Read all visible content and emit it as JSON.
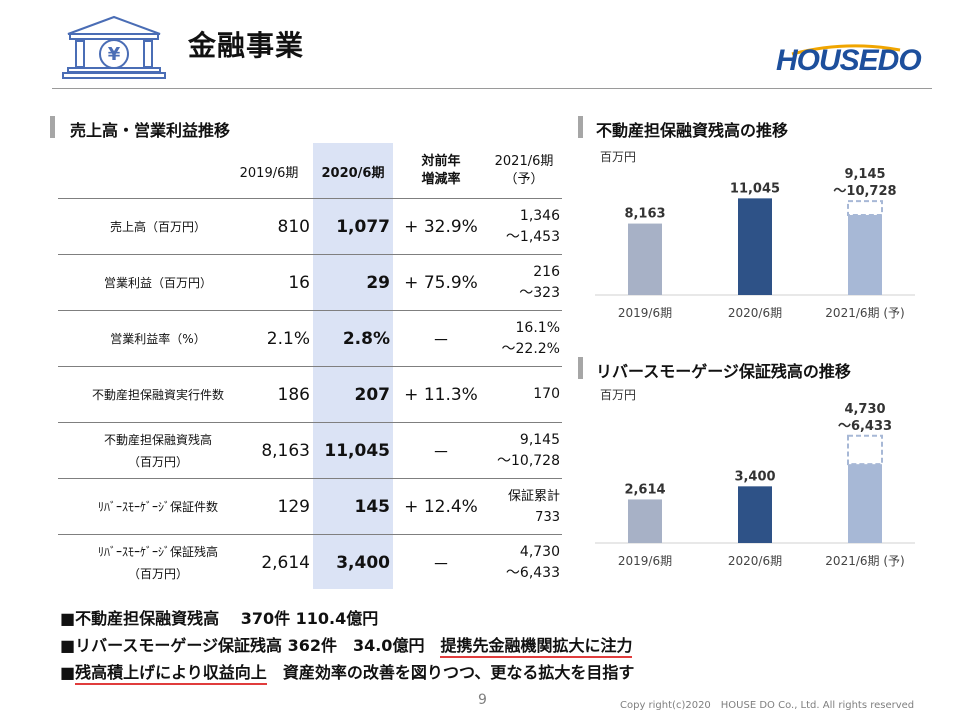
{
  "title": "金融事業",
  "brand": "HOUSEDO",
  "left_section_title": "売上高・営業利益推移",
  "table": {
    "headers": {
      "fy2019": "2019/6期",
      "fy2020": "2020/6期",
      "change": "対前年\n増減率",
      "forecast": "2021/6期\n（予）"
    },
    "rows": [
      {
        "label": "売上高（百万円）",
        "fy2019": "810",
        "fy2020": "1,077",
        "change": "+ 32.9%",
        "forecast": "1,346\n～1,453"
      },
      {
        "label": "営業利益（百万円）",
        "fy2019": "16",
        "fy2020": "29",
        "change": "+ 75.9%",
        "forecast": "216\n～323"
      },
      {
        "label": "営業利益率（%）",
        "fy2019": "2.1%",
        "fy2020": "2.8%",
        "change": "－",
        "forecast": "16.1%\n～22.2%"
      },
      {
        "label": "不動産担保融資実行件数",
        "fy2019": "186",
        "fy2020": "207",
        "change": "+ 11.3%",
        "forecast": "170"
      },
      {
        "label": "不動産担保融資残高\n（百万円）",
        "fy2019": "8,163",
        "fy2020": "11,045",
        "change": "－",
        "forecast": "9,145\n～10,728"
      },
      {
        "label": "ﾘﾊﾞｰｽﾓｰｹﾞｰｼﾞ保証件数",
        "fy2019": "129",
        "fy2020": "145",
        "change": "+ 12.4%",
        "forecast": "保証累計\n733"
      },
      {
        "label": "ﾘﾊﾞｰｽﾓｰｹﾞｰｼﾞ保証残高\n（百万円）",
        "fy2019": "2,614",
        "fy2020": "3,400",
        "change": "－",
        "forecast": "4,730\n～6,433"
      }
    ]
  },
  "chart_data": [
    {
      "type": "bar",
      "title": "不動産担保融資残高の推移",
      "unit": "百万円",
      "categories": [
        "2019/6期",
        "2020/6期",
        "2021/6期 (予)"
      ],
      "values": [
        8163,
        11045,
        9145
      ],
      "value_labels": [
        "8,163",
        "11,045",
        "9,145\n～10,728"
      ],
      "range_upper": 10728,
      "ylim": [
        0,
        12000
      ],
      "colors": [
        "#a7b1c6",
        "#2e5287",
        "#a7b8d6"
      ]
    },
    {
      "type": "bar",
      "title": "リバースモーゲージ保証残高の推移",
      "unit": "百万円",
      "categories": [
        "2019/6期",
        "2020/6期",
        "2021/6期 (予)"
      ],
      "values": [
        2614,
        3400,
        4730
      ],
      "value_labels": [
        "2,614",
        "3,400",
        "4,730\n～6,433"
      ],
      "range_upper": 6433,
      "ylim": [
        0,
        6900
      ],
      "colors": [
        "#a7b1c6",
        "#2e5287",
        "#a7b8d6"
      ]
    }
  ],
  "notes": [
    {
      "text": "■不動産担保融資残高　 370件 110.4億円"
    },
    {
      "text": "■リバースモーゲージ保証残高 362件　34.0億円　",
      "highlight": "提携先金融機関拡大に注力"
    },
    {
      "prefix": "■",
      "highlight": "残高積上げにより収益向上",
      "text": "　資産効率の改善を図りつつ、更なる拡大を目指す"
    }
  ],
  "page_number": "9",
  "copyright": "Copy right(c)2020　HOUSE DO Co., Ltd. All rights reserved"
}
